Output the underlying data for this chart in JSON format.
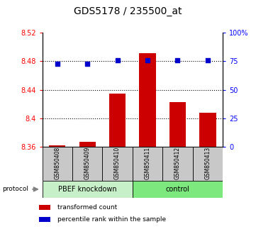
{
  "title": "GDS5178 / 235500_at",
  "samples": [
    "GSM850408",
    "GSM850409",
    "GSM850410",
    "GSM850411",
    "GSM850412",
    "GSM850413"
  ],
  "red_values": [
    8.362,
    8.367,
    8.435,
    8.491,
    8.423,
    8.408
  ],
  "blue_values": [
    73,
    73,
    76,
    76,
    76,
    76
  ],
  "ylim_left": [
    8.36,
    8.52
  ],
  "ylim_right": [
    0,
    100
  ],
  "yticks_left": [
    8.36,
    8.4,
    8.44,
    8.48,
    8.52
  ],
  "yticks_right": [
    0,
    25,
    50,
    75,
    100
  ],
  "ytick_labels_left": [
    "8.36",
    "8.4",
    "8.44",
    "8.48",
    "8.52"
  ],
  "ytick_labels_right": [
    "0",
    "25",
    "50",
    "75",
    "100%"
  ],
  "group1_label": "PBEF knockdown",
  "group2_label": "control",
  "group1_color": "#c8f0c8",
  "group2_color": "#7de87d",
  "bar_color": "#cc0000",
  "dot_color": "#0000cc",
  "legend_red_label": "transformed count",
  "legend_blue_label": "percentile rank within the sample",
  "protocol_label": "protocol",
  "bar_width": 0.55,
  "sample_bg_color": "#c8c8c8",
  "title_fontsize": 10,
  "tick_fontsize": 7,
  "sample_fontsize": 5.5,
  "group_fontsize": 7,
  "legend_fontsize": 6.5
}
